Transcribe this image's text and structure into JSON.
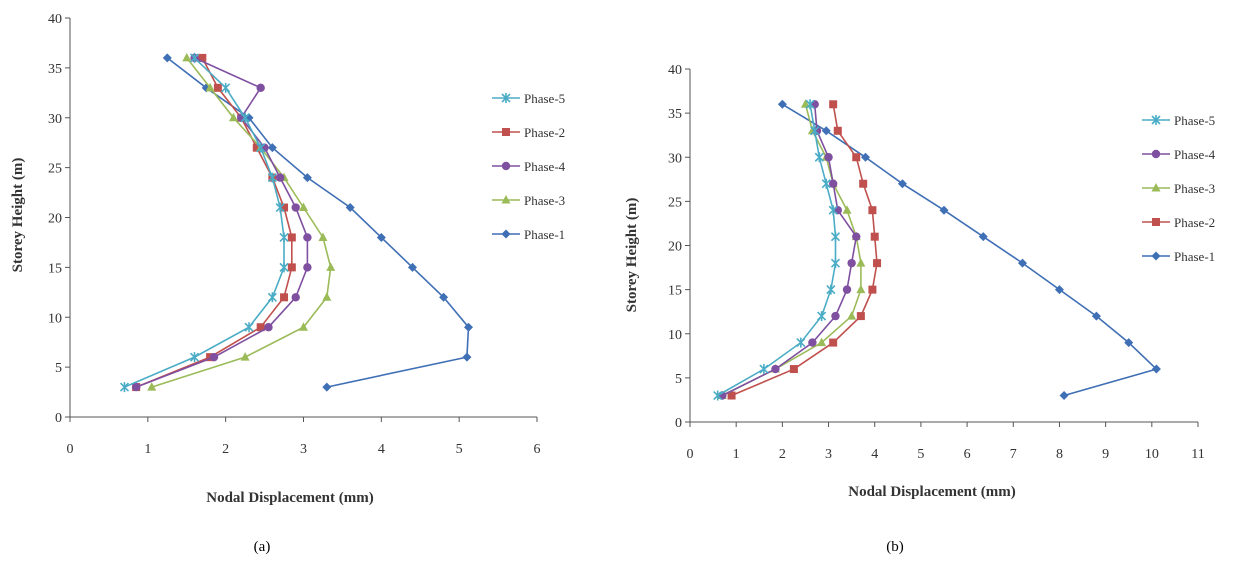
{
  "chart_data": [
    {
      "type": "line",
      "caption": "(a)",
      "xlabel": "Nodal Displacement (mm)",
      "ylabel": "Storey  Height (m)",
      "xlim": [
        0,
        6
      ],
      "ylim": [
        0,
        40
      ],
      "xticks": [
        "0",
        "1",
        "2",
        "3",
        "4",
        "5",
        "6"
      ],
      "yticks": [
        "0",
        "5",
        "10",
        "15",
        "20",
        "25",
        "30",
        "35",
        "40"
      ],
      "legend_position": "right",
      "grid": false,
      "legend_order": [
        "Phase-5",
        "Phase-2",
        "Phase-4",
        "Phase-3",
        "Phase-1"
      ],
      "series": [
        {
          "name": "Phase-1",
          "color": "#3f6fb5",
          "marker": "diamond",
          "points": [
            [
              3.3,
              3
            ],
            [
              5.1,
              6
            ],
            [
              5.12,
              9
            ],
            [
              4.8,
              12
            ],
            [
              4.4,
              15
            ],
            [
              4.0,
              18
            ],
            [
              3.6,
              21
            ],
            [
              3.05,
              24
            ],
            [
              2.6,
              27
            ],
            [
              2.3,
              30
            ],
            [
              1.75,
              33
            ],
            [
              1.25,
              36
            ]
          ]
        },
        {
          "name": "Phase-2",
          "color": "#c0504d",
          "marker": "square",
          "points": [
            [
              0.85,
              3
            ],
            [
              1.8,
              6
            ],
            [
              2.45,
              9
            ],
            [
              2.75,
              12
            ],
            [
              2.85,
              15
            ],
            [
              2.85,
              18
            ],
            [
              2.75,
              21
            ],
            [
              2.6,
              24
            ],
            [
              2.4,
              27
            ],
            [
              2.2,
              30
            ],
            [
              1.9,
              33
            ],
            [
              1.7,
              36
            ]
          ]
        },
        {
          "name": "Phase-3",
          "color": "#9bbb59",
          "marker": "triangle",
          "points": [
            [
              1.05,
              3
            ],
            [
              2.25,
              6
            ],
            [
              3.0,
              9
            ],
            [
              3.3,
              12
            ],
            [
              3.35,
              15
            ],
            [
              3.25,
              18
            ],
            [
              3.0,
              21
            ],
            [
              2.75,
              24
            ],
            [
              2.45,
              27
            ],
            [
              2.1,
              30
            ],
            [
              1.8,
              33
            ],
            [
              1.5,
              36
            ]
          ]
        },
        {
          "name": "Phase-4",
          "color": "#7f4fa0",
          "marker": "circle",
          "points": [
            [
              0.85,
              3
            ],
            [
              1.85,
              6
            ],
            [
              2.55,
              9
            ],
            [
              2.9,
              12
            ],
            [
              3.05,
              15
            ],
            [
              3.05,
              18
            ],
            [
              2.9,
              21
            ],
            [
              2.7,
              24
            ],
            [
              2.5,
              27
            ],
            [
              2.2,
              30
            ],
            [
              2.45,
              33
            ],
            [
              1.6,
              36
            ]
          ]
        },
        {
          "name": "Phase-5",
          "color": "#4bacc6",
          "marker": "x",
          "points": [
            [
              0.7,
              3
            ],
            [
              1.6,
              6
            ],
            [
              2.3,
              9
            ],
            [
              2.6,
              12
            ],
            [
              2.75,
              15
            ],
            [
              2.75,
              18
            ],
            [
              2.7,
              21
            ],
            [
              2.6,
              24
            ],
            [
              2.45,
              27
            ],
            [
              2.25,
              30
            ],
            [
              2.0,
              33
            ],
            [
              1.6,
              36
            ]
          ]
        }
      ]
    },
    {
      "type": "line",
      "caption": "(b)",
      "xlabel": "Nodal Displacement (mm)",
      "ylabel": "Storey  Height (m)",
      "xlim": [
        0,
        11
      ],
      "ylim": [
        0,
        40
      ],
      "xticks": [
        "0",
        "1",
        "2",
        "3",
        "4",
        "5",
        "6",
        "7",
        "8",
        "9",
        "10",
        "11"
      ],
      "yticks": [
        "0",
        "5",
        "10",
        "15",
        "20",
        "25",
        "30",
        "35",
        "40"
      ],
      "legend_position": "right",
      "grid": false,
      "legend_order": [
        "Phase-5",
        "Phase-4",
        "Phase-3",
        "Phase-2",
        "Phase-1"
      ],
      "series": [
        {
          "name": "Phase-1",
          "color": "#3f6fb5",
          "marker": "diamond",
          "points": [
            [
              8.1,
              3
            ],
            [
              10.1,
              6
            ],
            [
              9.5,
              9
            ],
            [
              8.8,
              12
            ],
            [
              8.0,
              15
            ],
            [
              7.2,
              18
            ],
            [
              6.35,
              21
            ],
            [
              5.5,
              24
            ],
            [
              4.6,
              27
            ],
            [
              3.8,
              30
            ],
            [
              2.95,
              33
            ],
            [
              2.0,
              36
            ]
          ]
        },
        {
          "name": "Phase-2",
          "color": "#c0504d",
          "marker": "square",
          "points": [
            [
              0.9,
              3
            ],
            [
              2.25,
              6
            ],
            [
              3.1,
              9
            ],
            [
              3.7,
              12
            ],
            [
              3.95,
              15
            ],
            [
              4.05,
              18
            ],
            [
              4.0,
              21
            ],
            [
              3.95,
              24
            ],
            [
              3.75,
              27
            ],
            [
              3.6,
              30
            ],
            [
              3.2,
              33
            ],
            [
              3.1,
              36
            ]
          ]
        },
        {
          "name": "Phase-3",
          "color": "#9bbb59",
          "marker": "triangle",
          "points": [
            [
              0.7,
              3
            ],
            [
              1.85,
              6
            ],
            [
              2.85,
              9
            ],
            [
              3.5,
              12
            ],
            [
              3.7,
              15
            ],
            [
              3.7,
              18
            ],
            [
              3.6,
              21
            ],
            [
              3.4,
              24
            ],
            [
              3.1,
              27
            ],
            [
              2.95,
              30
            ],
            [
              2.65,
              33
            ],
            [
              2.5,
              36
            ]
          ]
        },
        {
          "name": "Phase-4",
          "color": "#7f4fa0",
          "marker": "circle",
          "points": [
            [
              0.7,
              3
            ],
            [
              1.85,
              6
            ],
            [
              2.65,
              9
            ],
            [
              3.15,
              12
            ],
            [
              3.4,
              15
            ],
            [
              3.5,
              18
            ],
            [
              3.6,
              21
            ],
            [
              3.2,
              24
            ],
            [
              3.1,
              27
            ],
            [
              3.0,
              30
            ],
            [
              2.75,
              33
            ],
            [
              2.7,
              36
            ]
          ]
        },
        {
          "name": "Phase-5",
          "color": "#4bacc6",
          "marker": "x",
          "points": [
            [
              0.6,
              3
            ],
            [
              1.6,
              6
            ],
            [
              2.4,
              9
            ],
            [
              2.85,
              12
            ],
            [
              3.05,
              15
            ],
            [
              3.15,
              18
            ],
            [
              3.15,
              21
            ],
            [
              3.1,
              24
            ],
            [
              2.95,
              27
            ],
            [
              2.8,
              30
            ],
            [
              2.7,
              33
            ],
            [
              2.6,
              36
            ]
          ]
        }
      ]
    }
  ]
}
